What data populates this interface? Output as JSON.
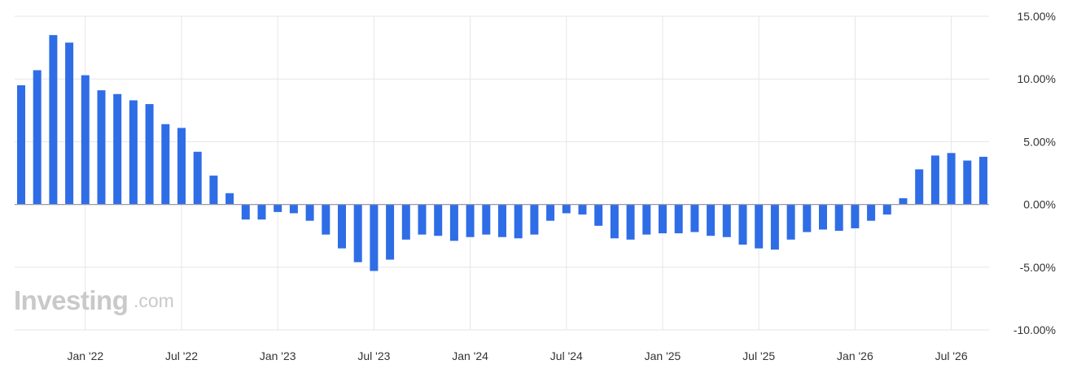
{
  "chart_data": {
    "type": "bar",
    "color": "#2f6de6",
    "x_tick_labels": [
      "Jan '22",
      "Jul '22",
      "Jan '23",
      "Jul '23",
      "Jan '24",
      "Jul '24",
      "Jan '25",
      "Jul '25",
      "Jan '26",
      "Jul '26"
    ],
    "y_tick_labels": [
      "15.00%",
      "10.00%",
      "5.00%",
      "0.00%",
      "-5.00%",
      "-10.00%"
    ],
    "y_ticks": [
      15,
      10,
      5,
      0,
      -5,
      -10
    ],
    "ylim": [
      -10,
      15
    ],
    "grid": true,
    "values": [
      9.5,
      10.7,
      13.5,
      12.9,
      10.3,
      9.1,
      8.8,
      8.3,
      8.0,
      6.4,
      6.1,
      4.2,
      2.3,
      0.9,
      -1.2,
      -1.2,
      -0.6,
      -0.7,
      -1.3,
      -2.4,
      -3.5,
      -4.6,
      -5.3,
      -4.4,
      -2.8,
      -2.4,
      -2.5,
      -2.9,
      -2.6,
      -2.4,
      -2.6,
      -2.7,
      -2.4,
      -1.3,
      -0.7,
      -0.8,
      -1.7,
      -2.7,
      -2.8,
      -2.4,
      -2.3,
      -2.3,
      -2.2,
      -2.5,
      -2.6,
      -3.2,
      -3.5,
      -3.6,
      -2.8,
      -2.2,
      -2.0,
      -2.1,
      -1.9,
      -1.3,
      -0.8,
      0.5,
      2.8,
      3.9,
      4.1,
      3.5,
      3.8
    ]
  },
  "watermark": {
    "brand": "Investing",
    "suffix": ".com"
  }
}
